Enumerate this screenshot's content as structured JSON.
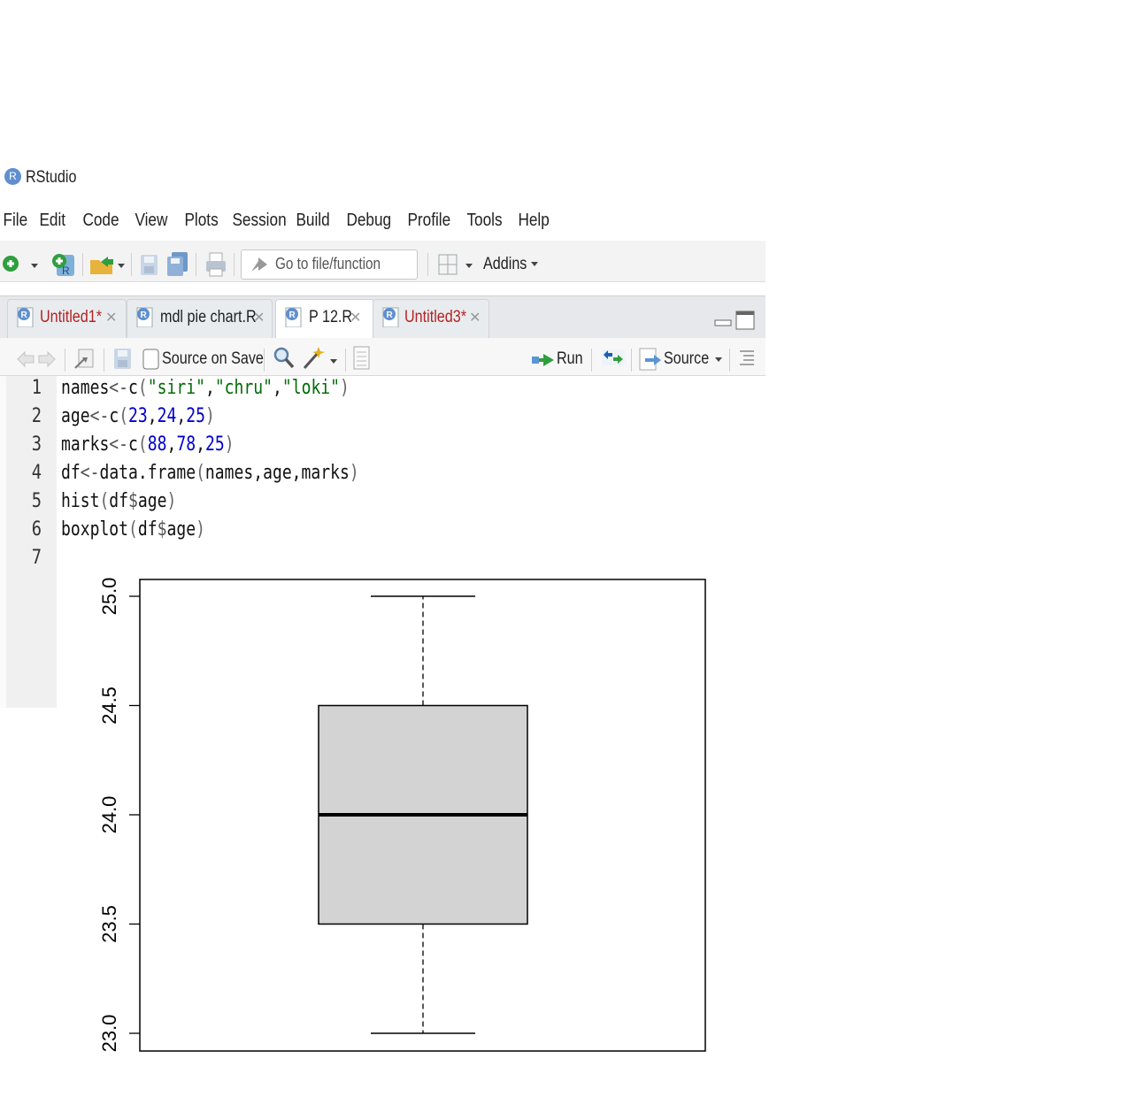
{
  "window": {
    "title": "RStudio"
  },
  "menu": [
    "File",
    "Edit",
    "Code",
    "View",
    "Plots",
    "Session",
    "Build",
    "Debug",
    "Profile",
    "Tools",
    "Help"
  ],
  "toolbar": {
    "goto_placeholder": "Go to file/function",
    "addins_label": "Addins"
  },
  "tabs": [
    {
      "label": "Untitled1*",
      "modified": true,
      "active": false
    },
    {
      "label": "mdl pie chart.R",
      "modified": false,
      "active": false
    },
    {
      "label": "P 12.R",
      "modified": false,
      "active": true
    },
    {
      "label": "Untitled3*",
      "modified": true,
      "active": false
    }
  ],
  "editor_toolbar": {
    "source_on_save": "Source on Save",
    "run": "Run",
    "source": "Source"
  },
  "code": {
    "line_numbers": [
      "1",
      "2",
      "3",
      "4",
      "5",
      "6",
      "7"
    ],
    "lines": [
      [
        {
          "t": "names"
        },
        {
          "t": "<-",
          "c": "op"
        },
        {
          "t": "c"
        },
        {
          "t": "(",
          "c": "par"
        },
        {
          "t": "\"siri\"",
          "c": "str"
        },
        {
          "t": ","
        },
        {
          "t": "\"chru\"",
          "c": "str"
        },
        {
          "t": ","
        },
        {
          "t": "\"loki\"",
          "c": "str"
        },
        {
          "t": ")",
          "c": "par"
        }
      ],
      [
        {
          "t": "age"
        },
        {
          "t": "<-",
          "c": "op"
        },
        {
          "t": "c"
        },
        {
          "t": "(",
          "c": "par"
        },
        {
          "t": "23",
          "c": "num"
        },
        {
          "t": ","
        },
        {
          "t": "24",
          "c": "num"
        },
        {
          "t": ","
        },
        {
          "t": "25",
          "c": "num"
        },
        {
          "t": ")",
          "c": "par"
        }
      ],
      [
        {
          "t": "marks"
        },
        {
          "t": "<-",
          "c": "op"
        },
        {
          "t": "c"
        },
        {
          "t": "(",
          "c": "par"
        },
        {
          "t": "88",
          "c": "num"
        },
        {
          "t": ","
        },
        {
          "t": "78",
          "c": "num"
        },
        {
          "t": ","
        },
        {
          "t": "25",
          "c": "num"
        },
        {
          "t": ")",
          "c": "par"
        }
      ],
      [
        {
          "t": "df"
        },
        {
          "t": "<-",
          "c": "op"
        },
        {
          "t": "data.frame"
        },
        {
          "t": "(",
          "c": "par"
        },
        {
          "t": "names,age,marks"
        },
        {
          "t": ")",
          "c": "par"
        }
      ],
      [
        {
          "t": "hist"
        },
        {
          "t": "(",
          "c": "par"
        },
        {
          "t": "df"
        },
        {
          "t": "$",
          "c": "op"
        },
        {
          "t": "age"
        },
        {
          "t": ")",
          "c": "par"
        }
      ],
      [
        {
          "t": "boxplot"
        },
        {
          "t": "(",
          "c": "par"
        },
        {
          "t": "df"
        },
        {
          "t": "$",
          "c": "op"
        },
        {
          "t": "age"
        },
        {
          "t": ")",
          "c": "par"
        }
      ],
      []
    ]
  },
  "chart_data": {
    "type": "boxplot",
    "title": "",
    "xlabel": "",
    "ylabel": "",
    "ylim": [
      23.0,
      25.0
    ],
    "yticks": [
      "23.0",
      "23.5",
      "24.0",
      "24.5",
      "25.0"
    ],
    "stats": {
      "min": 23.0,
      "q1": 23.5,
      "median": 24.0,
      "q3": 24.5,
      "max": 25.0
    },
    "box_color": "#d3d3d3",
    "grid": false
  }
}
